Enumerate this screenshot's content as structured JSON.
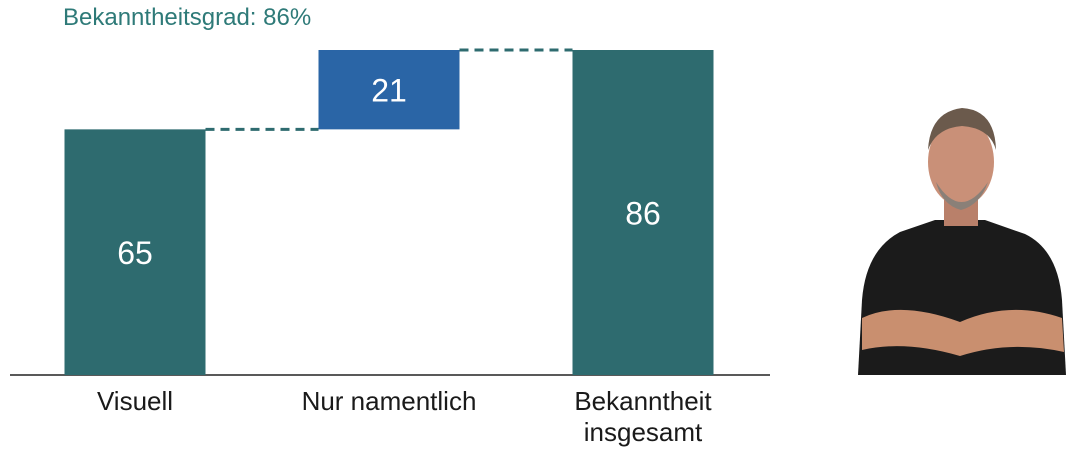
{
  "chart_data": {
    "type": "waterfall",
    "title": "Bekanntheitsgrad: 86%",
    "categories": [
      "Visuell",
      "Nur namentlich",
      "Bekanntheit insgesamt"
    ],
    "values": [
      65,
      21,
      86
    ],
    "colors": [
      "#2e6b6f",
      "#2a65a6",
      "#2e6b6f"
    ]
  }
}
